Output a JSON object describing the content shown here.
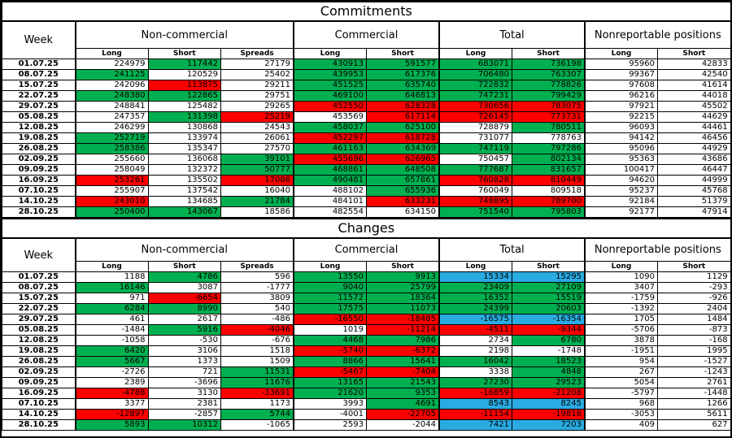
{
  "colors": {
    "w": "#FFFFFF",
    "g": "#00B050",
    "r": "#FF0000",
    "b": "#29ABE2"
  },
  "columns": {
    "week_label": "Week",
    "groups": [
      {
        "label": "Non-commercial",
        "cols": [
          "Long",
          "Short",
          "Spreads"
        ]
      },
      {
        "label": "Commercial",
        "cols": [
          "Long",
          "Short"
        ]
      },
      {
        "label": "Total",
        "cols": [
          "Long",
          "Short"
        ]
      },
      {
        "label": "Nonreportable positions",
        "cols": [
          "Long",
          "Short"
        ]
      }
    ]
  },
  "sections": [
    {
      "id": "commitments",
      "title": "Commitments",
      "rows": [
        {
          "week": "01.07.25",
          "values": [
            224979,
            117442,
            27179,
            430913,
            591577,
            683071,
            736198,
            95960,
            42833
          ],
          "colors": [
            "w",
            "g",
            "w",
            "g",
            "g",
            "g",
            "g",
            "w",
            "w"
          ],
          "bold": []
        },
        {
          "week": "08.07.25",
          "values": [
            241125,
            120529,
            25402,
            439953,
            617376,
            706480,
            763307,
            99367,
            42540
          ],
          "colors": [
            "g",
            "w",
            "w",
            "g",
            "g",
            "g",
            "g",
            "w",
            "w"
          ],
          "bold": []
        },
        {
          "week": "15.07.25",
          "values": [
            242096,
            113875,
            29211,
            451525,
            635740,
            722832,
            778826,
            97608,
            41614
          ],
          "colors": [
            "w",
            "r",
            "w",
            "g",
            "g",
            "g",
            "g",
            "w",
            "w"
          ],
          "bold": []
        },
        {
          "week": "22.07.25",
          "values": [
            248380,
            122865,
            29751,
            469100,
            646813,
            747231,
            799429,
            96216,
            44018
          ],
          "colors": [
            "g",
            "g",
            "w",
            "g",
            "g",
            "g",
            "g",
            "w",
            "w"
          ],
          "bold": []
        },
        {
          "week": "29.07.25",
          "values": [
            248841,
            125482,
            29265,
            452550,
            628328,
            730656,
            783075,
            97921,
            45502
          ],
          "colors": [
            "w",
            "w",
            "w",
            "r",
            "r",
            "r",
            "r",
            "w",
            "w"
          ],
          "bold": []
        },
        {
          "week": "05.08.25",
          "values": [
            247357,
            131398,
            25219,
            453569,
            617114,
            726145,
            773731,
            92215,
            44629
          ],
          "colors": [
            "w",
            "g",
            "r",
            "w",
            "r",
            "r",
            "r",
            "w",
            "w"
          ],
          "bold": []
        },
        {
          "week": "12.08.25",
          "values": [
            246299,
            130868,
            24543,
            458037,
            625100,
            728879,
            780511,
            96093,
            44461
          ],
          "colors": [
            "w",
            "w",
            "w",
            "g",
            "g",
            "w",
            "g",
            "w",
            "w"
          ],
          "bold": []
        },
        {
          "week": "19.08.25",
          "values": [
            252719,
            133974,
            26061,
            452297,
            618728,
            731077,
            778763,
            94142,
            46456
          ],
          "colors": [
            "g",
            "w",
            "w",
            "r",
            "r",
            "w",
            "w",
            "w",
            "w"
          ],
          "bold": []
        },
        {
          "week": "26.08.25",
          "values": [
            258386,
            135347,
            27570,
            461163,
            634369,
            747119,
            797286,
            95096,
            44929
          ],
          "colors": [
            "g",
            "w",
            "w",
            "g",
            "g",
            "g",
            "g",
            "w",
            "w"
          ],
          "bold": []
        },
        {
          "week": "02.09.25",
          "values": [
            255660,
            136068,
            39101,
            455696,
            626965,
            750457,
            802134,
            95363,
            43686
          ],
          "colors": [
            "w",
            "w",
            "g",
            "r",
            "r",
            "w",
            "g",
            "w",
            "w"
          ],
          "bold": []
        },
        {
          "week": "09.09.25",
          "values": [
            258049,
            132372,
            50777,
            468861,
            648508,
            777687,
            831657,
            100417,
            46447
          ],
          "colors": [
            "w",
            "w",
            "g",
            "g",
            "g",
            "g",
            "g",
            "w",
            "w"
          ],
          "bold": []
        },
        {
          "week": "16.09.25",
          "values": [
            253261,
            135502,
            17086,
            490481,
            657861,
            760828,
            810449,
            94620,
            44999
          ],
          "colors": [
            "r",
            "w",
            "r",
            "g",
            "g",
            "r",
            "r",
            "w",
            "w"
          ],
          "bold": []
        },
        {
          "week": "07.10.25",
          "values": [
            255907,
            137542,
            16040,
            488102,
            655936,
            760049,
            809518,
            95237,
            45768
          ],
          "colors": [
            "w",
            "w",
            "w",
            "w",
            "g",
            "w",
            "w",
            "w",
            "w"
          ],
          "bold": []
        },
        {
          "week": "14.10.25",
          "values": [
            243010,
            134685,
            21784,
            484101,
            633231,
            748895,
            789700,
            92184,
            51379
          ],
          "colors": [
            "r",
            "w",
            "g",
            "w",
            "r",
            "r",
            "r",
            "w",
            "w"
          ],
          "bold": []
        },
        {
          "week": "28.10.25",
          "values": [
            250400,
            143067,
            18586,
            482554,
            634150,
            751540,
            795803,
            92177,
            47914
          ],
          "colors": [
            "g",
            "g",
            "w",
            "w",
            "w",
            "g",
            "g",
            "w",
            "w"
          ],
          "bold": [
            5,
            6
          ]
        }
      ]
    },
    {
      "id": "changes",
      "title": "Changes",
      "rows": [
        {
          "week": "01.07.25",
          "values": [
            1188,
            4786,
            596,
            13550,
            9913,
            15334,
            15295,
            1090,
            1129
          ],
          "colors": [
            "w",
            "g",
            "w",
            "g",
            "g",
            "b",
            "b",
            "w",
            "w"
          ],
          "bold": []
        },
        {
          "week": "08.07.25",
          "values": [
            16146,
            3087,
            -1777,
            9040,
            25799,
            23409,
            27109,
            3407,
            -293
          ],
          "colors": [
            "g",
            "w",
            "w",
            "g",
            "g",
            "g",
            "g",
            "w",
            "w"
          ],
          "bold": []
        },
        {
          "week": "15.07.25",
          "values": [
            971,
            -6654,
            3809,
            11572,
            18364,
            16352,
            15519,
            -1759,
            -926
          ],
          "colors": [
            "w",
            "r",
            "w",
            "g",
            "g",
            "g",
            "g",
            "w",
            "w"
          ],
          "bold": []
        },
        {
          "week": "22.07.25",
          "values": [
            6284,
            8990,
            540,
            17575,
            11073,
            24399,
            20603,
            -1392,
            2404
          ],
          "colors": [
            "g",
            "g",
            "w",
            "g",
            "g",
            "g",
            "g",
            "w",
            "w"
          ],
          "bold": []
        },
        {
          "week": "29.07.25",
          "values": [
            461,
            2617,
            -486,
            -16550,
            -18485,
            -16575,
            -16354,
            1705,
            1484
          ],
          "colors": [
            "w",
            "w",
            "w",
            "r",
            "r",
            "b",
            "b",
            "w",
            "w"
          ],
          "bold": []
        },
        {
          "week": "05.08.25",
          "values": [
            -1484,
            5916,
            -4046,
            1019,
            -11214,
            -4511,
            -9344,
            -5706,
            -873
          ],
          "colors": [
            "w",
            "g",
            "r",
            "w",
            "r",
            "r",
            "r",
            "w",
            "w"
          ],
          "bold": []
        },
        {
          "week": "12.08.25",
          "values": [
            -1058,
            -530,
            -676,
            4468,
            7986,
            2734,
            6780,
            3878,
            -168
          ],
          "colors": [
            "w",
            "w",
            "w",
            "g",
            "g",
            "w",
            "g",
            "w",
            "w"
          ],
          "bold": []
        },
        {
          "week": "19.08.25",
          "values": [
            6420,
            3106,
            1518,
            -5740,
            -6372,
            2198,
            -1748,
            -1951,
            1995
          ],
          "colors": [
            "g",
            "w",
            "w",
            "r",
            "r",
            "w",
            "w",
            "w",
            "w"
          ],
          "bold": []
        },
        {
          "week": "26.08.25",
          "values": [
            5667,
            1373,
            1509,
            8866,
            15641,
            16042,
            18523,
            954,
            -1527
          ],
          "colors": [
            "g",
            "w",
            "w",
            "g",
            "g",
            "g",
            "g",
            "w",
            "w"
          ],
          "bold": []
        },
        {
          "week": "02.09.25",
          "values": [
            -2726,
            721,
            11531,
            -5467,
            -7404,
            3338,
            4848,
            267,
            -1243
          ],
          "colors": [
            "w",
            "w",
            "g",
            "r",
            "r",
            "w",
            "g",
            "w",
            "w"
          ],
          "bold": []
        },
        {
          "week": "09.09.25",
          "values": [
            2389,
            -3696,
            11676,
            13165,
            21543,
            27230,
            29523,
            5054,
            2761
          ],
          "colors": [
            "w",
            "w",
            "g",
            "g",
            "g",
            "g",
            "g",
            "w",
            "w"
          ],
          "bold": []
        },
        {
          "week": "16.09.25",
          "values": [
            -4788,
            3130,
            -33691,
            21620,
            9353,
            -16859,
            -21208,
            -5797,
            -1448
          ],
          "colors": [
            "r",
            "w",
            "r",
            "g",
            "g",
            "r",
            "r",
            "w",
            "w"
          ],
          "bold": []
        },
        {
          "week": "07.10.25",
          "values": [
            3377,
            2381,
            1173,
            3993,
            4691,
            8543,
            8245,
            968,
            1266
          ],
          "colors": [
            "w",
            "w",
            "w",
            "w",
            "g",
            "b",
            "b",
            "w",
            "w"
          ],
          "bold": []
        },
        {
          "week": "14.10.25",
          "values": [
            -12897,
            -2857,
            5744,
            -4001,
            -22705,
            -11154,
            -19818,
            -3053,
            5611
          ],
          "colors": [
            "r",
            "w",
            "g",
            "w",
            "r",
            "r",
            "r",
            "w",
            "w"
          ],
          "bold": []
        },
        {
          "week": "28.10.25",
          "values": [
            5893,
            10312,
            -1065,
            2593,
            -2044,
            7421,
            7203,
            409,
            627
          ],
          "colors": [
            "g",
            "g",
            "w",
            "w",
            "w",
            "b",
            "b",
            "w",
            "w"
          ],
          "bold": [
            5,
            6
          ]
        }
      ]
    }
  ]
}
